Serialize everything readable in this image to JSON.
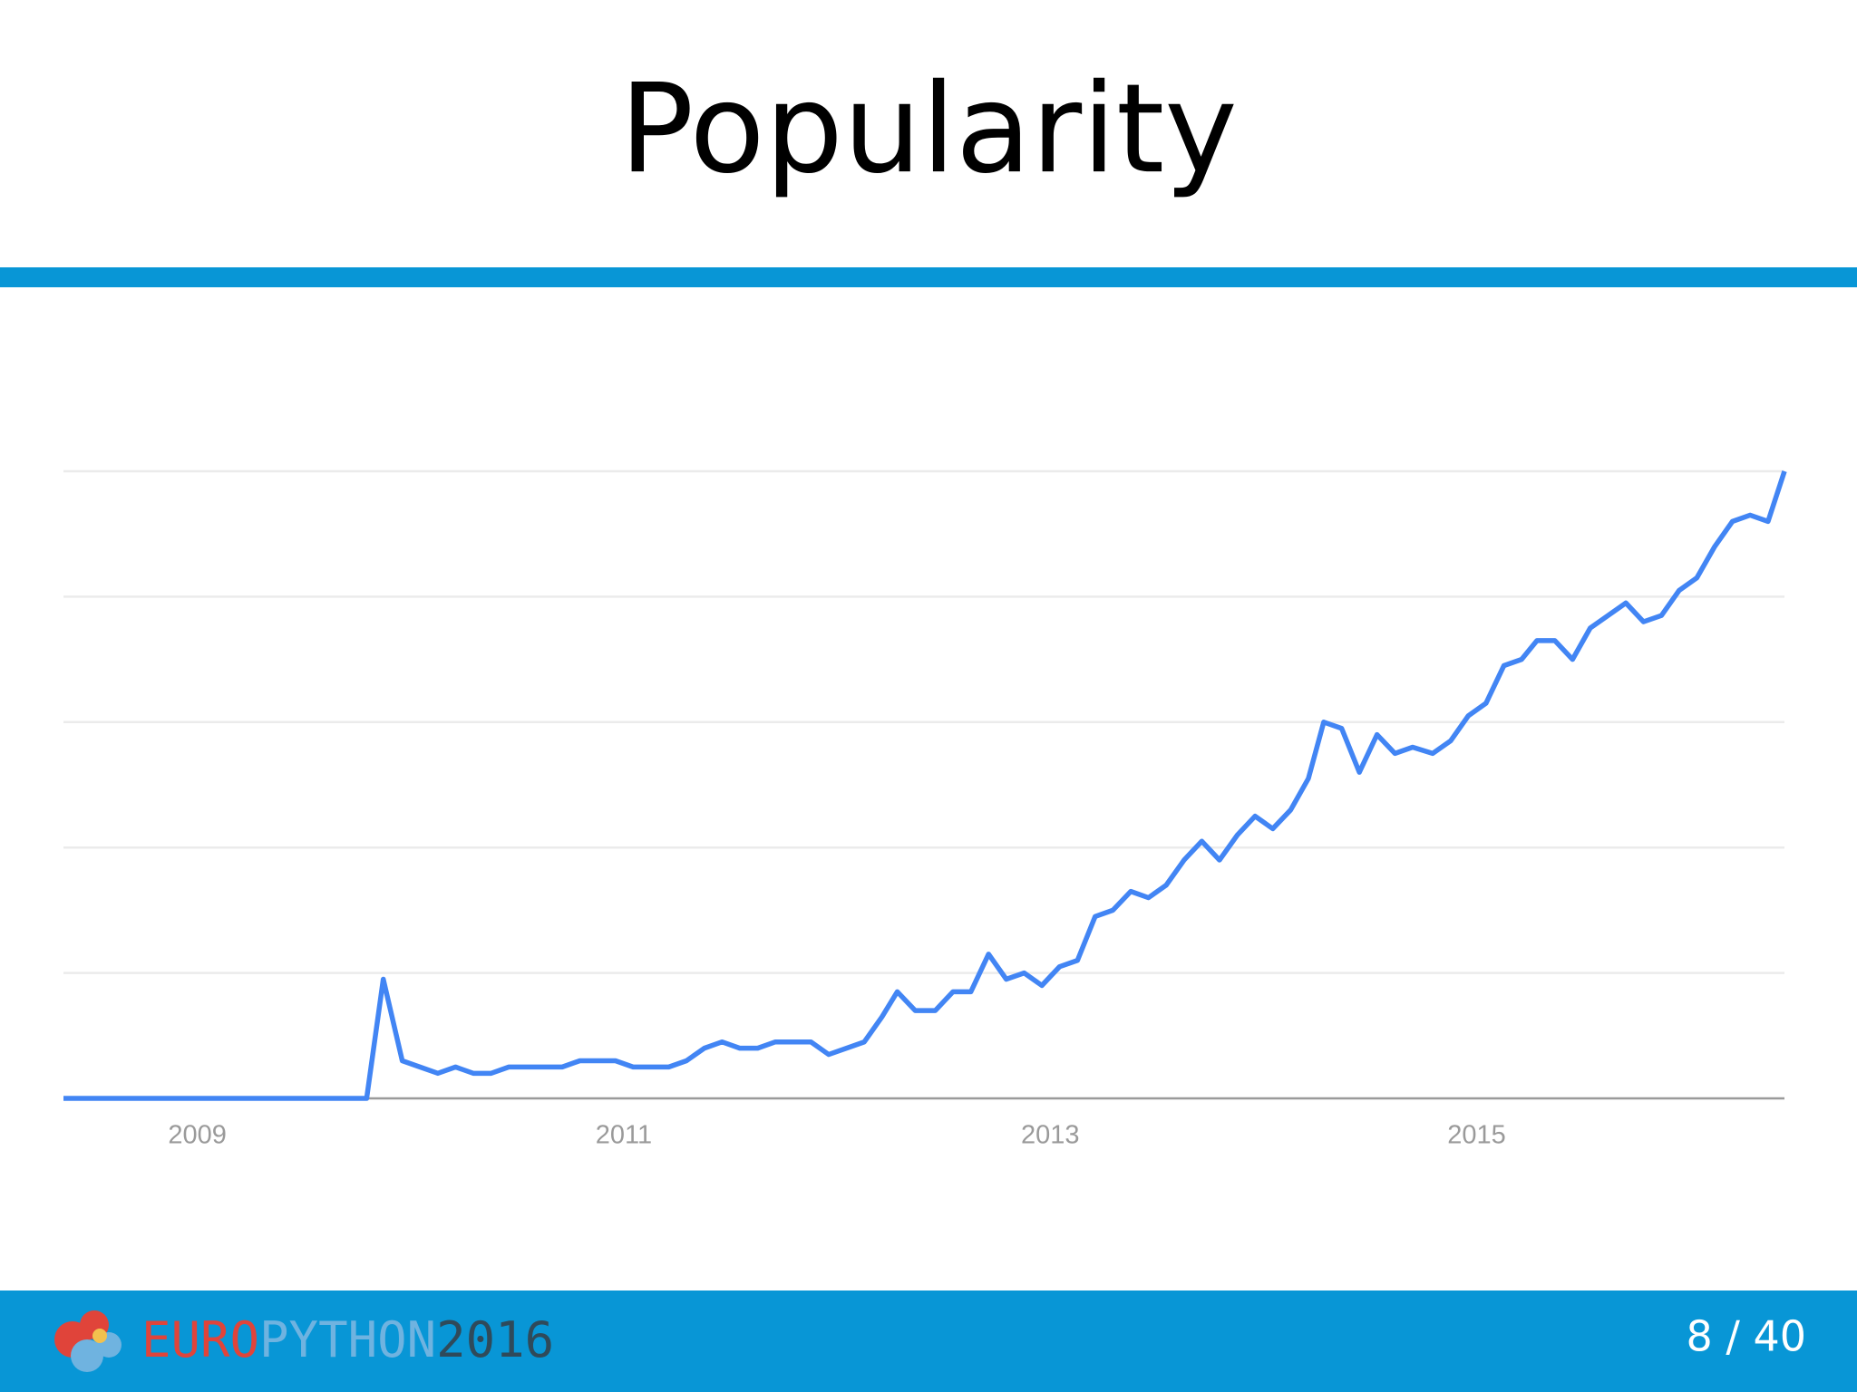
{
  "slide": {
    "title": "Popularity",
    "page": "8 / 40"
  },
  "logo": [
    {
      "text": "EURO",
      "color": "#e0443a"
    },
    {
      "text": "PYTHON",
      "color": "#6fb3e0"
    },
    {
      "text": "2016",
      "color": "#2f4a5a"
    }
  ],
  "chart_data": {
    "type": "line",
    "color": "#4285f4",
    "grid": true,
    "x": [
      2008.372,
      2009.794,
      2009.872,
      2009.961,
      2010.044,
      2010.128,
      2010.211,
      2010.294,
      2010.378,
      2010.461,
      2010.711,
      2010.794,
      2010.961,
      2011.044,
      2011.211,
      2011.294,
      2011.378,
      2011.461,
      2011.544,
      2011.628,
      2011.711,
      2011.878,
      2011.961,
      2012.128,
      2012.211,
      2012.283,
      2012.367,
      2012.461,
      2012.544,
      2012.628,
      2012.711,
      2012.794,
      2012.878,
      2012.961,
      2013.044,
      2013.128,
      2013.211,
      2013.294,
      2013.378,
      2013.461,
      2013.544,
      2013.628,
      2013.711,
      2013.794,
      2013.878,
      2013.961,
      2014.044,
      2014.128,
      2014.211,
      2014.283,
      2014.367,
      2014.45,
      2014.533,
      2014.617,
      2014.7,
      2014.794,
      2014.878,
      2014.961,
      2015.044,
      2015.128,
      2015.211,
      2015.283,
      2015.367,
      2015.45,
      2015.533,
      2015.617,
      2015.7,
      2015.783,
      2015.867,
      2015.95,
      2016.033,
      2016.117,
      2016.2,
      2016.283,
      2016.367,
      2016.444
    ],
    "values": [
      0,
      0,
      19,
      6,
      5,
      4,
      5,
      4,
      4,
      5,
      5,
      6,
      6,
      5,
      5,
      6,
      8,
      9,
      8,
      8,
      9,
      9,
      7,
      9,
      13,
      17,
      14,
      14,
      17,
      17,
      23,
      19,
      20,
      18,
      21,
      22,
      29,
      30,
      33,
      32,
      34,
      38,
      41,
      38,
      42,
      45,
      43,
      46,
      51,
      60,
      59,
      52,
      58,
      55,
      56,
      55,
      57,
      61,
      63,
      69,
      70,
      73,
      73,
      70,
      75,
      77,
      79,
      76,
      77,
      81,
      83,
      88,
      92,
      93,
      92,
      100
    ],
    "xlim": [
      2008.372,
      2016.444
    ],
    "xticks": [
      2009,
      2011,
      2013,
      2015
    ],
    "ylim": [
      0,
      100
    ],
    "yticks": [
      0,
      20,
      40,
      60,
      80,
      100
    ]
  }
}
